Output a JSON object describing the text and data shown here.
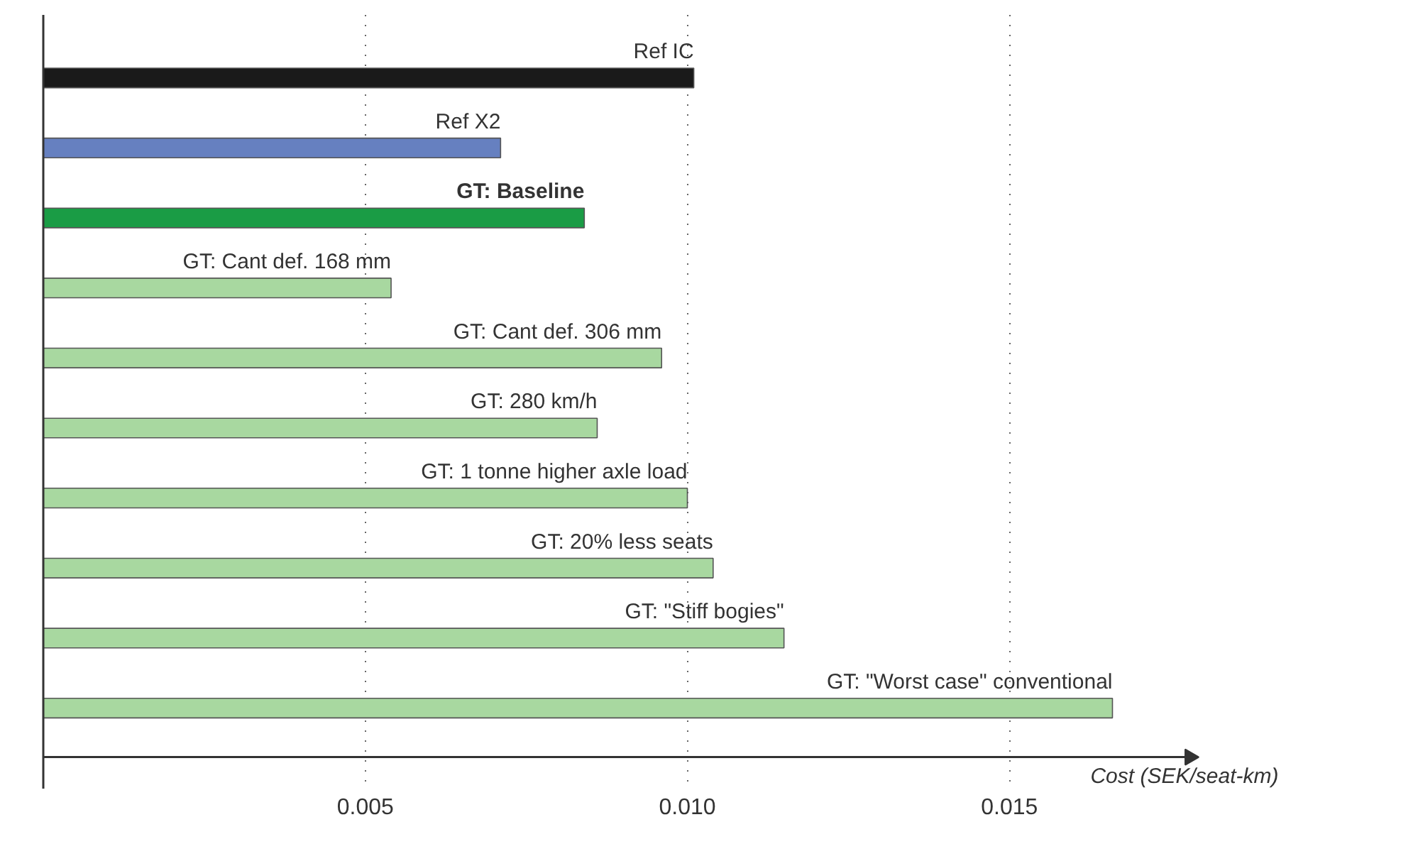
{
  "chart_data": {
    "type": "bar",
    "orientation": "horizontal",
    "xlabel": "Cost (SEK/seat-km)",
    "categories": [
      "Ref IC",
      "Ref X2",
      "GT: Baseline",
      "GT: Cant def. 168 mm",
      "GT: Cant def. 306 mm",
      "GT: 280 km/h",
      "GT: 1 tonne higher axle load",
      "GT: 20% less seats",
      "GT: \"Stiff bogies\"",
      "GT: \"Worst case\" conventional"
    ],
    "values": [
      0.0101,
      0.0071,
      0.0084,
      0.0054,
      0.0096,
      0.0086,
      0.01,
      0.0104,
      0.0115,
      0.0166
    ],
    "colors": [
      "#1a1a1a",
      "#6680c0",
      "#1a9c45",
      "#a8d8a0",
      "#a8d8a0",
      "#a8d8a0",
      "#a8d8a0",
      "#a8d8a0",
      "#a8d8a0",
      "#a8d8a0"
    ],
    "xlim": [
      0,
      0.0178
    ],
    "xticks": [
      0.005,
      {
        "value": 0.01,
        "label": "0.010"
      },
      0.015
    ],
    "grid": "x"
  }
}
